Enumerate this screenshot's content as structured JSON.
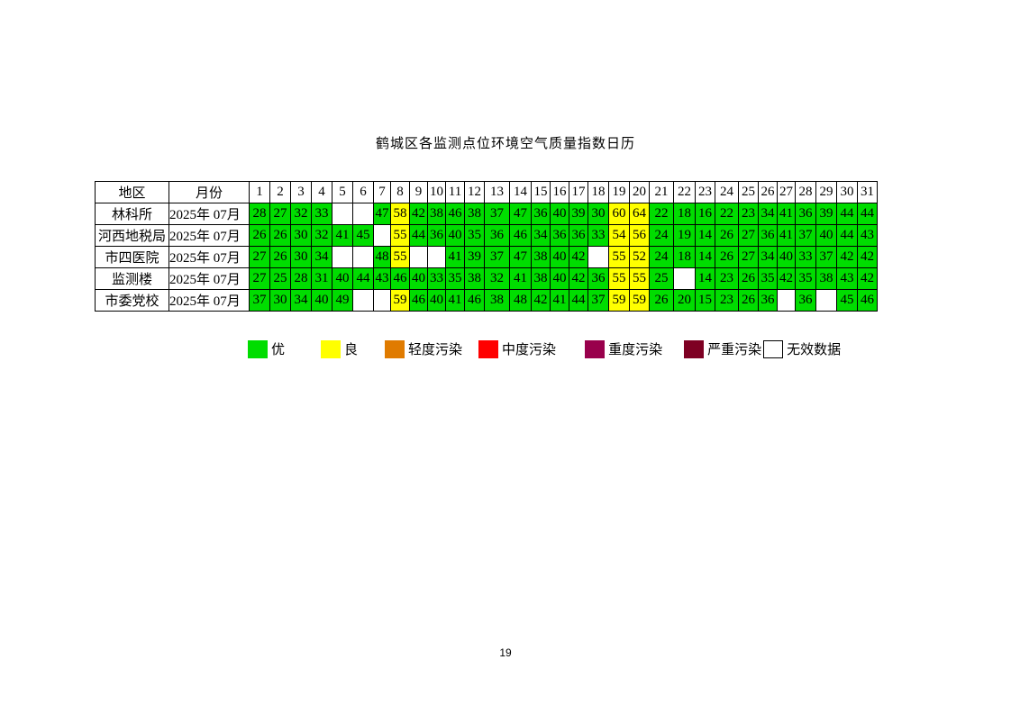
{
  "title": "鹤城区各监测点位环境空气质量指数日历",
  "headers": {
    "region": "地区",
    "month": "月份"
  },
  "days": [
    "1",
    "2",
    "3",
    "4",
    "5",
    "6",
    "7",
    "8",
    "9",
    "10",
    "11",
    "12",
    "13",
    "14",
    "15",
    "16",
    "17",
    "18",
    "19",
    "20",
    "21",
    "22",
    "23",
    "24",
    "25",
    "26",
    "27",
    "28",
    "29",
    "30",
    "31"
  ],
  "rows": [
    {
      "region": "林科所",
      "month": "2025年  07月",
      "values": [
        28,
        27,
        32,
        33,
        null,
        null,
        47,
        58,
        42,
        38,
        46,
        38,
        37,
        47,
        36,
        40,
        39,
        30,
        60,
        64,
        22,
        18,
        16,
        22,
        23,
        34,
        41,
        36,
        39,
        44,
        44
      ]
    },
    {
      "region": "河西地税局",
      "month": "2025年  07月",
      "values": [
        26,
        26,
        30,
        32,
        41,
        45,
        null,
        55,
        44,
        36,
        40,
        35,
        36,
        46,
        34,
        36,
        36,
        33,
        54,
        56,
        24,
        19,
        14,
        26,
        27,
        36,
        41,
        37,
        40,
        44,
        43
      ]
    },
    {
      "region": "市四医院",
      "month": "2025年  07月",
      "values": [
        27,
        26,
        30,
        34,
        null,
        null,
        48,
        55,
        null,
        null,
        41,
        39,
        37,
        47,
        38,
        40,
        42,
        null,
        55,
        52,
        24,
        18,
        14,
        26,
        27,
        34,
        40,
        33,
        37,
        42,
        42
      ]
    },
    {
      "region": "监测楼",
      "month": "2025年  07月",
      "values": [
        27,
        25,
        28,
        31,
        40,
        44,
        43,
        46,
        40,
        33,
        35,
        38,
        32,
        41,
        38,
        40,
        42,
        36,
        55,
        55,
        25,
        null,
        14,
        23,
        26,
        35,
        42,
        35,
        38,
        43,
        42
      ]
    },
    {
      "region": "市委党校",
      "month": "2025年  07月",
      "values": [
        37,
        30,
        34,
        40,
        49,
        null,
        null,
        59,
        46,
        40,
        41,
        46,
        38,
        48,
        42,
        41,
        44,
        37,
        59,
        59,
        26,
        20,
        15,
        23,
        26,
        36,
        null,
        36,
        null,
        45,
        46
      ]
    }
  ],
  "legend": [
    {
      "label": "优",
      "color": "#00dd00"
    },
    {
      "label": "良",
      "color": "#ffff00"
    },
    {
      "label": "轻度污染",
      "color": "#e07b00"
    },
    {
      "label": "中度污染",
      "color": "#ff0000"
    },
    {
      "label": "重度污染",
      "color": "#99004c"
    },
    {
      "label": "严重污染",
      "color": "#7e0023"
    },
    {
      "label": "无效数据",
      "color": "#ffffff"
    }
  ],
  "page_number": "19"
}
